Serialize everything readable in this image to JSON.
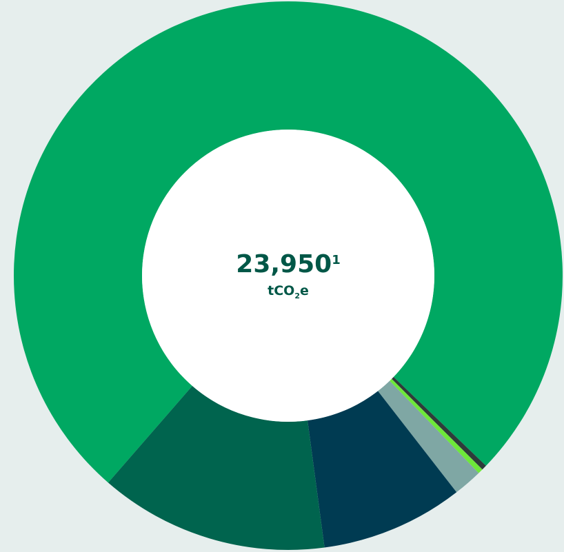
{
  "chart_data": {
    "type": "donut",
    "values": [
      75.8,
      0.3,
      0.3,
      1.7,
      8.4,
      13.5
    ],
    "colors": [
      "#00a862",
      "#2e3b3a",
      "#6ee83a",
      "#7fa7a4",
      "#003b52",
      "#00644e"
    ],
    "center_value": "23,950",
    "center_note": "1",
    "unit_base": "tCO",
    "unit_sub": "2",
    "unit_end": "e"
  }
}
